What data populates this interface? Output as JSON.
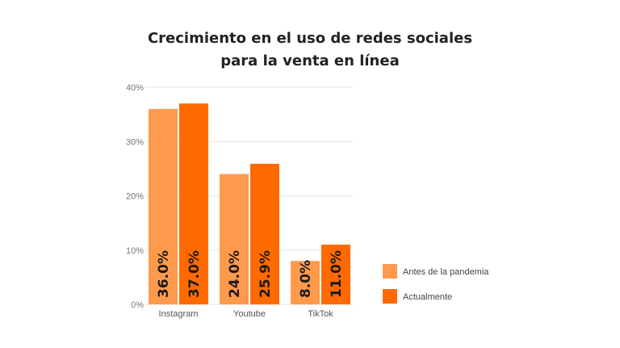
{
  "chart_data": {
    "type": "bar",
    "title_lines": [
      "Crecimiento en el uso de redes sociales",
      "para la venta en línea"
    ],
    "categories": [
      "Instagram",
      "Youtube",
      "TikTok"
    ],
    "series": [
      {
        "name": "Antes de la pandemia",
        "values": [
          36.0,
          24.0,
          8.0
        ],
        "labels": [
          "36.0%",
          "24.0%",
          "8.0%"
        ],
        "color": "#FF9A4D"
      },
      {
        "name": "Actualmente",
        "values": [
          37.0,
          25.9,
          11.0
        ],
        "labels": [
          "37.0%",
          "25.9%",
          "11.0%"
        ],
        "color": "#FF6A00"
      }
    ],
    "ylim": [
      0,
      40
    ],
    "yticks": [
      0,
      10,
      20,
      30,
      40
    ],
    "ytick_labels": [
      "0%",
      "10%",
      "20%",
      "30%",
      "40%"
    ],
    "grid": true,
    "legend_position": "right",
    "xlabel": "",
    "ylabel": ""
  }
}
